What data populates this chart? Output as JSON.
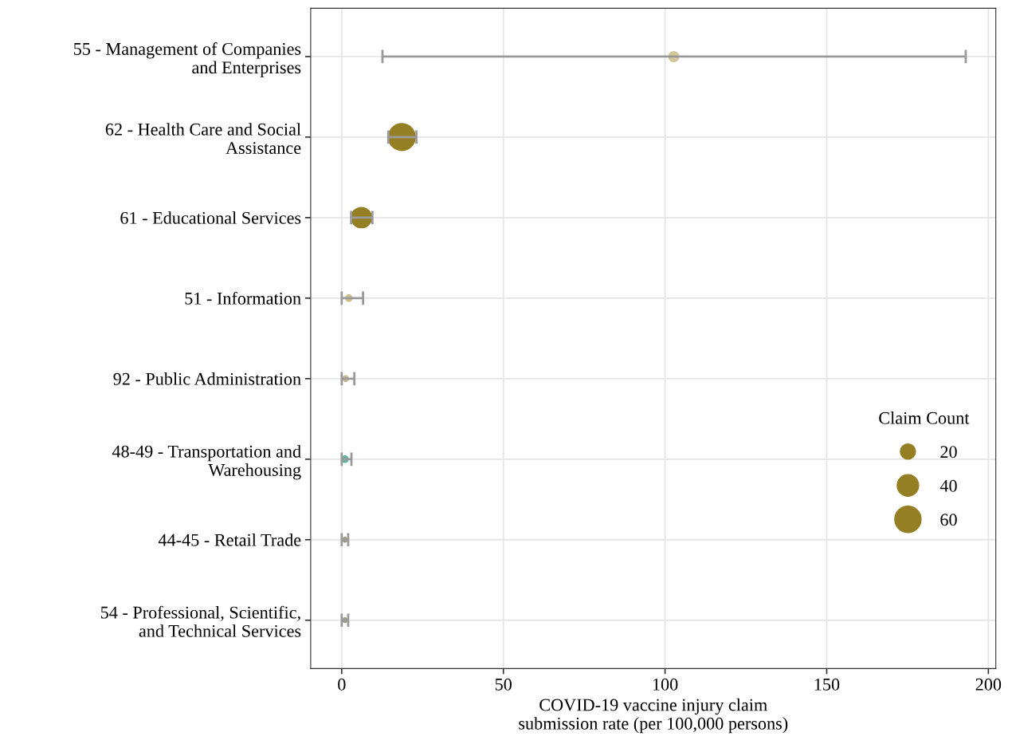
{
  "chart_data": {
    "type": "bubble",
    "orientation": "horizontal",
    "categories": [
      "55 - Management of Companies\nand Enterprises",
      "62 - Health Care and Social\nAssistance",
      "61 - Educational Services",
      "51 - Information",
      "92 - Public Administration",
      "48-49 - Transportation and\nWarehousing",
      "44-45 - Retail Trade",
      "54 - Professional, Scientific,\nand Technical Services"
    ],
    "values": [
      102.7,
      18.6,
      6.1,
      2.2,
      1.2,
      1.0,
      1.0,
      1.0
    ],
    "errors": [
      [
        12.6,
        193
      ],
      [
        14.4,
        23.1
      ],
      [
        2.9,
        9.5
      ],
      [
        0,
        6.6
      ],
      [
        0,
        3.9
      ],
      [
        0,
        3.0
      ],
      [
        0,
        2
      ],
      [
        0,
        2
      ]
    ],
    "sizes": [
      11,
      68,
      40,
      5,
      4,
      5,
      3,
      3
    ],
    "size_legend": [
      20,
      40,
      60
    ],
    "colors": [
      "#d2c79b",
      "#957f24",
      "#957f24",
      "#cdbf8a",
      "#c4b88c",
      "#5fb3a4",
      "#a39a7a",
      "#a39a7a"
    ],
    "xlabel": "COVID-19 vaccine injury claim\nsubmission rate (per 100,000 persons)",
    "legend_title": "Claim Count",
    "xlim": [
      -9.6,
      202.3
    ],
    "xticks": [
      0,
      50,
      100,
      150,
      200
    ],
    "grid": true,
    "marker": "circle"
  }
}
